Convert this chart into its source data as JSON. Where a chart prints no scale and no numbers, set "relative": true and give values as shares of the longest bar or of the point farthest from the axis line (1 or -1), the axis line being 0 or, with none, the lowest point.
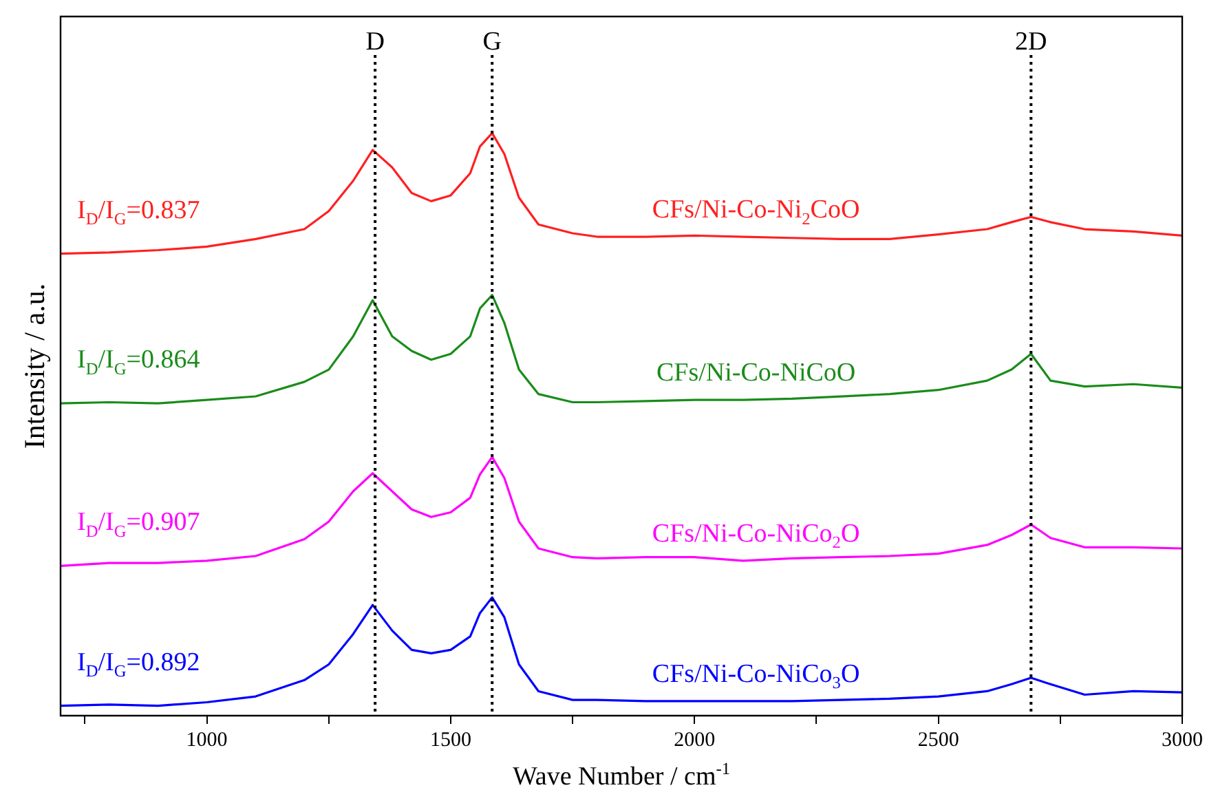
{
  "chart_data": {
    "type": "line",
    "relative": true,
    "xlabel": "Wave Number / cm$^{-1}$",
    "ylabel": "Intensity / a.u.",
    "x": [
      700,
      800,
      900,
      1000,
      1100,
      1200,
      1250,
      1300,
      1340,
      1380,
      1420,
      1460,
      1500,
      1540,
      1560,
      1585,
      1610,
      1640,
      1680,
      1750,
      1800,
      1900,
      2000,
      2100,
      2200,
      2300,
      2400,
      2500,
      2600,
      2650,
      2690,
      2730,
      2800,
      2900,
      3000
    ],
    "xlim": [
      700,
      3000
    ],
    "xticks": [
      {
        "value": 750,
        "label": null
      },
      1000,
      {
        "value": 1250,
        "label": null
      },
      1500,
      {
        "value": 1750,
        "label": null
      },
      2000,
      {
        "value": 2250,
        "label": null
      },
      2500,
      {
        "value": 2750,
        "label": null
      },
      3000
    ],
    "series": [
      {
        "name": "CFs/Ni-Co-Ni$_{2}$CoO",
        "color": "#ff2020",
        "values": [
          0.793,
          0.795,
          0.799,
          0.805,
          0.818,
          0.835,
          0.866,
          0.918,
          0.971,
          0.941,
          0.897,
          0.883,
          0.893,
          0.931,
          0.977,
          1,
          0.964,
          0.889,
          0.843,
          0.828,
          0.822,
          0.822,
          0.824,
          0.822,
          0.82,
          0.818,
          0.818,
          0.826,
          0.835,
          0.847,
          0.856,
          0.847,
          0.835,
          0.831,
          0.824
        ]
      },
      {
        "name": "CFs/Ni-Co-NiCoO",
        "color": "#1a8c1a",
        "values": [
          0.536,
          0.538,
          0.536,
          0.542,
          0.548,
          0.573,
          0.594,
          0.651,
          0.713,
          0.651,
          0.626,
          0.611,
          0.621,
          0.651,
          0.699,
          0.722,
          0.674,
          0.594,
          0.552,
          0.538,
          0.538,
          0.54,
          0.542,
          0.542,
          0.544,
          0.548,
          0.552,
          0.559,
          0.575,
          0.594,
          0.621,
          0.575,
          0.565,
          0.569,
          0.563
        ]
      },
      {
        "name": "CFs/Ni-Co-NiCo$_{2}$O",
        "color": "#ff00ff",
        "values": [
          0.257,
          0.262,
          0.262,
          0.266,
          0.274,
          0.303,
          0.333,
          0.385,
          0.416,
          0.385,
          0.354,
          0.341,
          0.349,
          0.374,
          0.414,
          0.444,
          0.408,
          0.333,
          0.287,
          0.272,
          0.27,
          0.272,
          0.272,
          0.266,
          0.27,
          0.272,
          0.274,
          0.278,
          0.293,
          0.31,
          0.328,
          0.305,
          0.289,
          0.289,
          0.287
        ]
      },
      {
        "name": "CFs/Ni-Co-NiCo$_{3}$O",
        "color": "#0000ff",
        "values": [
          0.017,
          0.019,
          0.017,
          0.023,
          0.033,
          0.061,
          0.088,
          0.14,
          0.19,
          0.146,
          0.113,
          0.107,
          0.113,
          0.136,
          0.176,
          0.203,
          0.169,
          0.088,
          0.042,
          0.027,
          0.027,
          0.025,
          0.025,
          0.025,
          0.025,
          0.027,
          0.029,
          0.033,
          0.042,
          0.054,
          0.065,
          0.054,
          0.036,
          0.042,
          0.04
        ]
      }
    ],
    "ref_lines": [
      {
        "axis": "x",
        "value": 1345,
        "label": "D",
        "color": "#000000",
        "line_style": "dotted"
      },
      {
        "axis": "x",
        "value": 1585,
        "label": "G",
        "color": "#000000",
        "line_style": "dotted"
      },
      {
        "axis": "x",
        "value": 2690,
        "label": "2D",
        "color": "#000000",
        "line_style": "dotted"
      }
    ],
    "annotations": [
      "I$_{D}$/I$_{G}$=0.837",
      "I$_{D}$/I$_{G}$=0.864",
      "I$_{D}$/I$_{G}$=0.907",
      "I$_{D}$/I$_{G}$=0.892"
    ],
    "legend": false,
    "grid": false,
    "marker": "none",
    "line_style": "solid"
  }
}
